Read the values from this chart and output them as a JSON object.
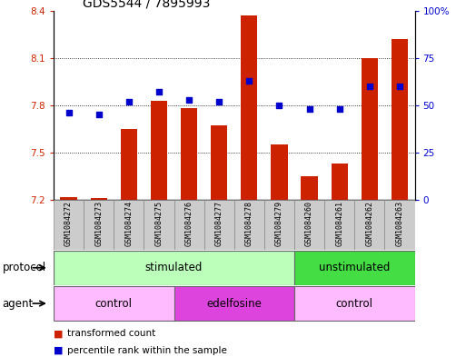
{
  "title": "GDS5544 / 7895993",
  "samples": [
    "GSM1084272",
    "GSM1084273",
    "GSM1084274",
    "GSM1084275",
    "GSM1084276",
    "GSM1084277",
    "GSM1084278",
    "GSM1084279",
    "GSM1084260",
    "GSM1084261",
    "GSM1084262",
    "GSM1084263"
  ],
  "bar_values": [
    7.22,
    7.21,
    7.65,
    7.83,
    7.78,
    7.67,
    8.37,
    7.55,
    7.35,
    7.43,
    8.1,
    8.22
  ],
  "bar_base": 7.2,
  "percentile_values": [
    46,
    45,
    52,
    57,
    53,
    52,
    63,
    50,
    48,
    48,
    60,
    60
  ],
  "ylim_left": [
    7.2,
    8.4
  ],
  "ylim_right": [
    0,
    100
  ],
  "yticks_left": [
    7.2,
    7.5,
    7.8,
    8.1,
    8.4
  ],
  "yticks_right": [
    0,
    25,
    50,
    75,
    100
  ],
  "bar_color": "#cc2200",
  "dot_color": "#0000cc",
  "protocol_stimulated_color": "#bbffbb",
  "protocol_unstimulated_color": "#44dd44",
  "agent_control_color": "#ffbbff",
  "agent_edelfosine_color": "#dd44dd",
  "protocol_label": "protocol",
  "agent_label": "agent",
  "protocol_groups": [
    {
      "label": "stimulated",
      "start": 0,
      "end": 8
    },
    {
      "label": "unstimulated",
      "start": 8,
      "end": 12
    }
  ],
  "agent_groups": [
    {
      "label": "control",
      "start": 0,
      "end": 4
    },
    {
      "label": "edelfosine",
      "start": 4,
      "end": 8
    },
    {
      "label": "control",
      "start": 8,
      "end": 12
    }
  ],
  "legend_bar_label": "transformed count",
  "legend_dot_label": "percentile rank within the sample",
  "title_fontsize": 10,
  "tick_fontsize": 7.5,
  "label_fontsize": 8.5,
  "sample_fontsize": 6,
  "row_label_fontsize": 8.5,
  "legend_fontsize": 7.5
}
